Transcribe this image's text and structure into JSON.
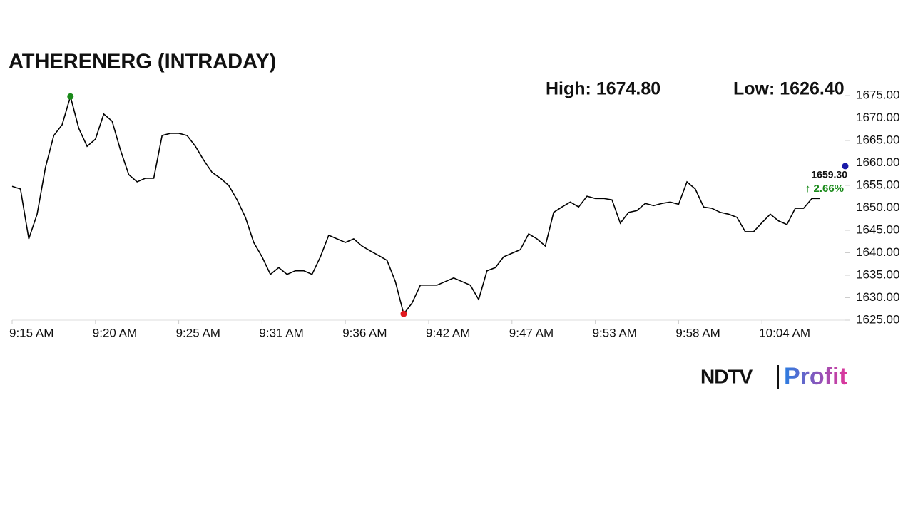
{
  "chart_data": {
    "type": "line",
    "title": "ATHERENERG (INTRADAY)",
    "color": "#000000",
    "values": [
      1654.8,
      1654.2,
      1643.1,
      1648.6,
      1659.0,
      1666.1,
      1668.5,
      1674.8,
      1667.7,
      1663.7,
      1665.3,
      1670.9,
      1669.3,
      1662.9,
      1657.4,
      1655.8,
      1656.6,
      1656.6,
      1666.1,
      1666.6,
      1666.6,
      1666.1,
      1663.7,
      1660.6,
      1657.9,
      1656.6,
      1655.0,
      1651.8,
      1647.9,
      1642.3,
      1639.1,
      1635.2,
      1636.7,
      1635.2,
      1636.0,
      1636.0,
      1635.2,
      1639.1,
      1643.9,
      1643.1,
      1642.3,
      1643.1,
      1641.5,
      1640.4,
      1639.4,
      1638.3,
      1633.6,
      1626.4,
      1628.8,
      1632.8,
      1632.8,
      1632.8,
      1633.6,
      1634.4,
      1633.6,
      1632.8,
      1629.6,
      1636.0,
      1636.7,
      1639.1,
      1639.9,
      1640.7,
      1644.2,
      1643.1,
      1641.5,
      1649.0,
      1650.2,
      1651.3,
      1650.2,
      1652.6,
      1652.1,
      1652.1,
      1651.8,
      1646.6,
      1649.0,
      1649.4,
      1651.0,
      1650.5,
      1651.0,
      1651.3,
      1650.8,
      1655.8,
      1654.2,
      1650.2,
      1649.9,
      1649.0,
      1648.6,
      1647.9,
      1644.7,
      1644.7,
      1646.7,
      1648.6,
      1647.1,
      1646.3,
      1649.9,
      1649.9,
      1652.1,
      1652.1
    ],
    "xlim": [
      0,
      100
    ],
    "xticks": [
      {
        "value": 0,
        "label": "9:15 AM"
      },
      {
        "value": 10,
        "label": "9:20 AM"
      },
      {
        "value": 20,
        "label": "9:25 AM"
      },
      {
        "value": 30,
        "label": "9:31 AM"
      },
      {
        "value": 40,
        "label": "9:36 AM"
      },
      {
        "value": 50,
        "label": "9:42 AM"
      },
      {
        "value": 60,
        "label": "9:47 AM"
      },
      {
        "value": 70,
        "label": "9:53 AM"
      },
      {
        "value": 80,
        "label": "9:58 AM"
      },
      {
        "value": 90,
        "label": "10:04 AM"
      }
    ],
    "ylim": [
      1625,
      1675
    ],
    "yticks": [
      {
        "value": 1625,
        "label": "1625.00"
      },
      {
        "value": 1630,
        "label": "1630.00"
      },
      {
        "value": 1635,
        "label": "1635.00"
      },
      {
        "value": 1640,
        "label": "1640.00"
      },
      {
        "value": 1645,
        "label": "1645.00"
      },
      {
        "value": 1650,
        "label": "1650.00"
      },
      {
        "value": 1655,
        "label": "1655.00"
      },
      {
        "value": 1660,
        "label": "1660.00"
      },
      {
        "value": 1665,
        "label": "1665.00"
      },
      {
        "value": 1670,
        "label": "1670.00"
      },
      {
        "value": 1675,
        "label": "1675.00"
      }
    ],
    "high": {
      "index": 7,
      "label": "High: 1674.80",
      "color": "#1a8a1a"
    },
    "low": {
      "index": 47,
      "label": "Low: 1626.40",
      "color": "#e0191f"
    },
    "current": {
      "value": 1659.3,
      "label": "1659.30",
      "change": "↑ 2.66%",
      "color": "#1a1aa8",
      "change_color": "#1a8a1a"
    }
  },
  "branding": {
    "left": "NDTV",
    "right": "Profit"
  }
}
